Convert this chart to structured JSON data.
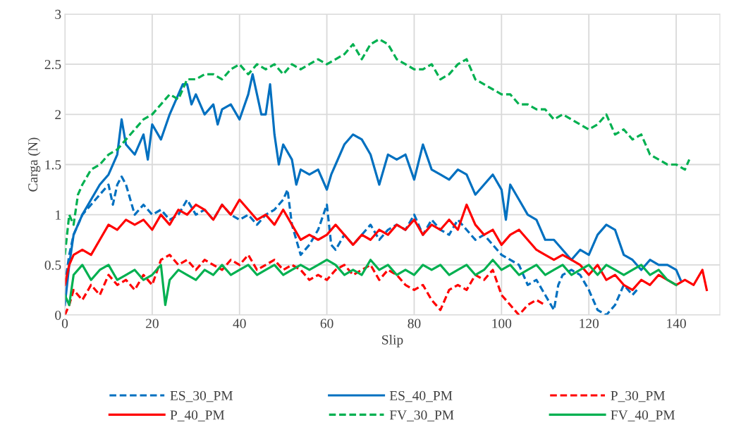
{
  "chart_data": {
    "type": "line",
    "xlabel": "Slip",
    "ylabel": "Carga (N)",
    "xlim": [
      0,
      150
    ],
    "xticks": [
      0,
      20,
      40,
      60,
      80,
      100,
      120,
      140
    ],
    "ylim": [
      0,
      3
    ],
    "yticks": [
      0,
      0.5,
      1,
      1.5,
      2,
      2.5,
      3
    ],
    "grid": true,
    "legend": "bottom",
    "marker": "none",
    "series": [
      {
        "name": "ES_30_PM",
        "color": "#0070c0",
        "line_style": "dashed",
        "x": [
          0,
          1,
          2,
          4,
          6,
          8,
          10,
          11,
          12,
          13,
          14,
          15,
          16,
          18,
          20,
          22,
          24,
          26,
          28,
          30,
          32,
          34,
          36,
          38,
          40,
          42,
          44,
          46,
          48,
          50,
          51,
          52,
          54,
          56,
          58,
          60,
          61,
          62,
          64,
          66,
          68,
          70,
          72,
          74,
          76,
          78,
          80,
          82,
          84,
          86,
          88,
          90,
          92,
          94,
          96,
          98,
          100,
          102,
          104,
          106,
          108,
          110,
          112,
          113,
          114,
          116,
          118,
          120,
          122,
          124,
          126,
          128,
          130,
          131
        ],
        "values": [
          0.3,
          0.6,
          0.8,
          1.0,
          1.1,
          1.2,
          1.3,
          1.1,
          1.3,
          1.38,
          1.3,
          1.15,
          1.0,
          1.1,
          1.0,
          1.05,
          0.95,
          1.0,
          1.15,
          1.0,
          1.05,
          0.95,
          1.1,
          1.0,
          0.95,
          1.0,
          0.9,
          1.0,
          1.05,
          1.15,
          1.25,
          0.9,
          0.6,
          0.7,
          0.85,
          1.1,
          0.7,
          0.65,
          0.8,
          0.7,
          0.8,
          0.9,
          0.75,
          0.85,
          0.9,
          0.85,
          1.0,
          0.8,
          0.95,
          0.85,
          0.8,
          0.95,
          0.85,
          0.75,
          0.8,
          0.7,
          0.6,
          0.55,
          0.5,
          0.3,
          0.35,
          0.2,
          0.05,
          0.3,
          0.4,
          0.45,
          0.4,
          0.25,
          0.05,
          0.0,
          0.1,
          0.3,
          0.2,
          0.25
        ]
      },
      {
        "name": "ES_40_PM",
        "color": "#0070c0",
        "line_style": "solid",
        "x": [
          0,
          1,
          2,
          4,
          6,
          8,
          10,
          12,
          13,
          14,
          16,
          18,
          19,
          20,
          22,
          24,
          26,
          27,
          28,
          29,
          30,
          32,
          34,
          35,
          36,
          38,
          40,
          42,
          43,
          44,
          45,
          46,
          47,
          48,
          49,
          50,
          52,
          53,
          54,
          56,
          58,
          60,
          61,
          62,
          64,
          66,
          68,
          70,
          72,
          74,
          76,
          78,
          80,
          82,
          84,
          86,
          88,
          90,
          92,
          94,
          96,
          98,
          100,
          101,
          102,
          104,
          106,
          108,
          110,
          112,
          114,
          116,
          118,
          120,
          122,
          124,
          126,
          128,
          130,
          132,
          134,
          136,
          138,
          140,
          141
        ],
        "values": [
          0.1,
          0.5,
          0.8,
          1.0,
          1.15,
          1.3,
          1.4,
          1.6,
          1.95,
          1.7,
          1.6,
          1.8,
          1.55,
          1.9,
          1.75,
          2.0,
          2.2,
          2.3,
          2.3,
          2.1,
          2.2,
          2.0,
          2.1,
          1.9,
          2.05,
          2.1,
          1.95,
          2.2,
          2.4,
          2.2,
          2.0,
          2.0,
          2.3,
          1.8,
          1.5,
          1.7,
          1.55,
          1.3,
          1.45,
          1.4,
          1.45,
          1.25,
          1.4,
          1.5,
          1.7,
          1.8,
          1.75,
          1.6,
          1.3,
          1.6,
          1.55,
          1.6,
          1.35,
          1.7,
          1.45,
          1.4,
          1.35,
          1.45,
          1.4,
          1.2,
          1.3,
          1.4,
          1.25,
          0.95,
          1.3,
          1.15,
          1.0,
          0.95,
          0.75,
          0.75,
          0.65,
          0.55,
          0.65,
          0.6,
          0.8,
          0.9,
          0.85,
          0.6,
          0.55,
          0.45,
          0.55,
          0.5,
          0.5,
          0.45,
          0.35
        ]
      },
      {
        "name": "P_30_PM",
        "color": "#ff0000",
        "line_style": "dashed",
        "x": [
          0,
          1,
          2,
          4,
          6,
          8,
          10,
          12,
          14,
          16,
          18,
          20,
          22,
          24,
          26,
          28,
          30,
          32,
          34,
          36,
          38,
          40,
          42,
          44,
          46,
          48,
          50,
          52,
          54,
          56,
          58,
          60,
          62,
          64,
          66,
          68,
          70,
          72,
          74,
          76,
          78,
          80,
          82,
          84,
          86,
          88,
          90,
          92,
          94,
          96,
          98,
          100,
          102,
          104,
          106,
          108,
          110
        ],
        "values": [
          0.0,
          0.1,
          0.25,
          0.15,
          0.3,
          0.2,
          0.4,
          0.3,
          0.35,
          0.25,
          0.4,
          0.3,
          0.55,
          0.6,
          0.5,
          0.55,
          0.45,
          0.55,
          0.5,
          0.45,
          0.55,
          0.5,
          0.6,
          0.45,
          0.5,
          0.55,
          0.45,
          0.5,
          0.45,
          0.35,
          0.4,
          0.35,
          0.45,
          0.5,
          0.4,
          0.45,
          0.5,
          0.35,
          0.45,
          0.4,
          0.3,
          0.25,
          0.3,
          0.15,
          0.05,
          0.25,
          0.3,
          0.25,
          0.4,
          0.35,
          0.45,
          0.2,
          0.1,
          0.0,
          0.1,
          0.15,
          0.1
        ]
      },
      {
        "name": "P_40_PM",
        "color": "#ff0000",
        "line_style": "solid",
        "x": [
          0,
          1,
          2,
          4,
          6,
          8,
          10,
          12,
          14,
          16,
          18,
          20,
          22,
          24,
          26,
          28,
          30,
          32,
          34,
          36,
          38,
          40,
          42,
          44,
          46,
          48,
          50,
          52,
          54,
          56,
          58,
          60,
          62,
          64,
          66,
          68,
          70,
          72,
          74,
          76,
          78,
          80,
          82,
          84,
          86,
          88,
          90,
          92,
          94,
          96,
          98,
          100,
          102,
          104,
          106,
          108,
          110,
          112,
          114,
          116,
          118,
          120,
          122,
          124,
          126,
          128,
          130,
          132,
          134,
          136,
          138,
          140,
          142,
          144,
          146,
          147
        ],
        "values": [
          0.3,
          0.5,
          0.6,
          0.65,
          0.6,
          0.75,
          0.9,
          0.85,
          0.95,
          0.9,
          0.95,
          0.85,
          1.0,
          0.9,
          1.05,
          1.0,
          1.1,
          1.05,
          0.95,
          1.1,
          1.0,
          1.15,
          1.05,
          0.95,
          1.0,
          0.9,
          1.05,
          0.9,
          0.75,
          0.8,
          0.75,
          0.8,
          0.9,
          0.8,
          0.7,
          0.8,
          0.75,
          0.85,
          0.8,
          0.9,
          0.85,
          0.95,
          0.8,
          0.9,
          0.85,
          0.95,
          0.85,
          1.1,
          0.9,
          0.8,
          0.85,
          0.7,
          0.8,
          0.85,
          0.75,
          0.65,
          0.6,
          0.55,
          0.6,
          0.55,
          0.5,
          0.4,
          0.5,
          0.35,
          0.4,
          0.3,
          0.25,
          0.35,
          0.3,
          0.4,
          0.35,
          0.3,
          0.35,
          0.3,
          0.45,
          0.25
        ]
      },
      {
        "name": "FV_30_PM",
        "color": "#00b050",
        "line_style": "dashed",
        "x": [
          0,
          1,
          2,
          3,
          4,
          6,
          8,
          10,
          12,
          14,
          16,
          18,
          20,
          22,
          24,
          26,
          28,
          30,
          32,
          34,
          36,
          38,
          40,
          42,
          44,
          46,
          48,
          50,
          52,
          54,
          56,
          58,
          60,
          62,
          64,
          66,
          68,
          70,
          72,
          74,
          76,
          78,
          80,
          82,
          84,
          86,
          88,
          90,
          92,
          94,
          96,
          98,
          100,
          102,
          104,
          106,
          108,
          110,
          112,
          114,
          116,
          118,
          120,
          122,
          124,
          126,
          128,
          130,
          132,
          134,
          136,
          138,
          140,
          142,
          143
        ],
        "values": [
          0.6,
          1.0,
          0.9,
          1.2,
          1.3,
          1.45,
          1.5,
          1.6,
          1.65,
          1.75,
          1.85,
          1.95,
          2.0,
          2.1,
          2.2,
          2.15,
          2.35,
          2.35,
          2.4,
          2.4,
          2.35,
          2.45,
          2.5,
          2.4,
          2.5,
          2.45,
          2.5,
          2.4,
          2.5,
          2.45,
          2.5,
          2.55,
          2.5,
          2.55,
          2.6,
          2.7,
          2.55,
          2.7,
          2.75,
          2.7,
          2.55,
          2.5,
          2.45,
          2.45,
          2.5,
          2.35,
          2.4,
          2.5,
          2.55,
          2.35,
          2.3,
          2.25,
          2.2,
          2.2,
          2.1,
          2.1,
          2.05,
          2.05,
          1.95,
          2.0,
          1.95,
          1.9,
          1.85,
          1.9,
          2.0,
          1.8,
          1.85,
          1.75,
          1.8,
          1.6,
          1.55,
          1.5,
          1.5,
          1.45,
          1.55
        ]
      },
      {
        "name": "FV_40_PM",
        "color": "#00b050",
        "line_style": "solid",
        "x": [
          0,
          1,
          2,
          4,
          6,
          8,
          10,
          12,
          14,
          16,
          18,
          20,
          22,
          23,
          24,
          26,
          28,
          30,
          32,
          34,
          36,
          38,
          40,
          42,
          44,
          46,
          48,
          50,
          52,
          54,
          56,
          58,
          60,
          62,
          64,
          66,
          68,
          70,
          72,
          74,
          76,
          78,
          80,
          82,
          84,
          86,
          88,
          90,
          92,
          94,
          96,
          98,
          100,
          102,
          104,
          106,
          108,
          110,
          112,
          114,
          116,
          118,
          120,
          122,
          124,
          126,
          128,
          130,
          132,
          134,
          136,
          138,
          140
        ],
        "values": [
          0.2,
          0.1,
          0.4,
          0.5,
          0.35,
          0.45,
          0.5,
          0.35,
          0.4,
          0.45,
          0.35,
          0.4,
          0.5,
          0.1,
          0.35,
          0.45,
          0.4,
          0.35,
          0.45,
          0.4,
          0.5,
          0.4,
          0.45,
          0.5,
          0.4,
          0.45,
          0.5,
          0.4,
          0.45,
          0.5,
          0.45,
          0.5,
          0.55,
          0.5,
          0.4,
          0.45,
          0.4,
          0.55,
          0.45,
          0.5,
          0.4,
          0.45,
          0.4,
          0.5,
          0.45,
          0.5,
          0.4,
          0.45,
          0.5,
          0.4,
          0.45,
          0.55,
          0.45,
          0.5,
          0.4,
          0.45,
          0.5,
          0.4,
          0.45,
          0.5,
          0.4,
          0.45,
          0.5,
          0.4,
          0.5,
          0.45,
          0.4,
          0.45,
          0.5,
          0.4,
          0.45,
          0.35,
          0.3
        ]
      }
    ]
  }
}
